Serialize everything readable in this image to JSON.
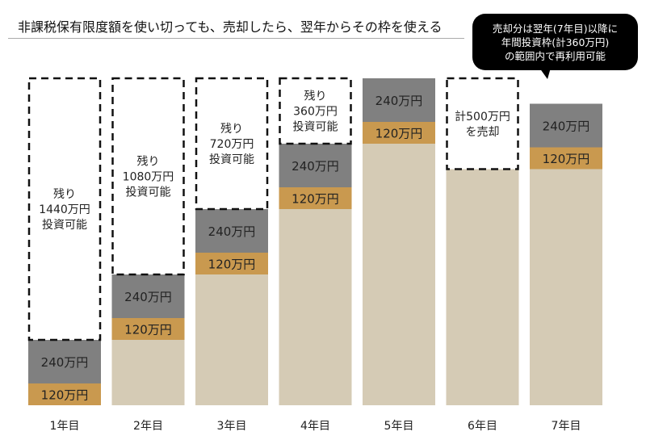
{
  "title": "非課税保有限度額を使い切っても、売却したら、翌年からその枠を使える",
  "callout": [
    "売却分は翌年(7年目)以降に",
    "年間投資枠(計360万円)",
    "の範囲内で再利用可能"
  ],
  "colors": {
    "holding": "#d5cbb5",
    "tsumitate": "#c9994f",
    "growth": "#808080",
    "dashed": "#111111"
  },
  "chart_data": {
    "type": "bar",
    "stacked": true,
    "unit": "万円",
    "categories": [
      "1年目",
      "2年目",
      "3年目",
      "4年目",
      "5年目",
      "6年目",
      "7年目"
    ],
    "limit": 1800,
    "bars": [
      {
        "base": 0,
        "orange": 120,
        "gray": 240,
        "orange_label": "120万円",
        "gray_label": "240万円",
        "dashed_label": [
          "残り",
          "1440万円",
          "投資可能"
        ]
      },
      {
        "base": 360,
        "orange": 120,
        "gray": 240,
        "orange_label": "120万円",
        "gray_label": "240万円",
        "dashed_label": [
          "残り",
          "1080万円",
          "投資可能"
        ]
      },
      {
        "base": 720,
        "orange": 120,
        "gray": 240,
        "orange_label": "120万円",
        "gray_label": "240万円",
        "dashed_label": [
          "残り",
          "720万円",
          "投資可能"
        ]
      },
      {
        "base": 1080,
        "orange": 120,
        "gray": 240,
        "orange_label": "120万円",
        "gray_label": "240万円",
        "dashed_label": [
          "残り",
          "360万円",
          "投資可能"
        ]
      },
      {
        "base": 1440,
        "orange": 120,
        "gray": 240,
        "orange_label": "120万円",
        "gray_label": "240万円",
        "dashed_label": []
      },
      {
        "base": 1300,
        "orange": 0,
        "gray": 0,
        "orange_label": "",
        "gray_label": "",
        "dashed_label": [
          "計500万円",
          "を売却"
        ]
      },
      {
        "base": 1300,
        "orange": 120,
        "gray": 240,
        "orange_label": "120万円",
        "gray_label": "240万円",
        "dashed_label": []
      }
    ]
  }
}
